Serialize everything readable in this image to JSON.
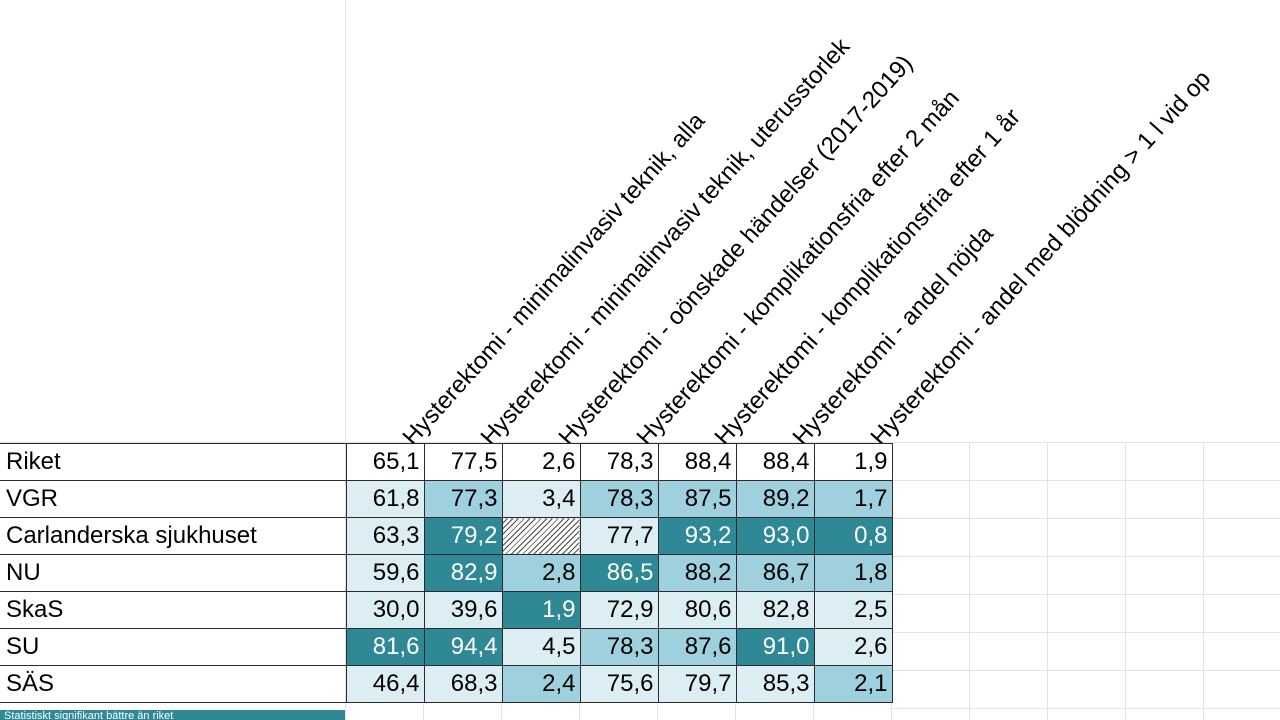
{
  "colors": {
    "level_0": "#ffffff",
    "level_1": "#dcedf3",
    "level_2": "#9fd0de",
    "level_3": "#2e8896",
    "hatch": "#4a4a4a",
    "footer_bg": "#2e8896"
  },
  "columns": [
    "Hysterektomi - minimalinvasiv teknik, alla",
    "Hysterektomi - minimalinvasiv teknik, uterusstorlek",
    "Hysterektomi - oönskade händelser (2017-2019)",
    "Hysterektomi - komplikationsfria efter 2 mån",
    "Hysterektomi - komplikationsfria efter 1 år",
    "Hysterektomi - andel nöjda",
    "Hysterektomi - andel med blödning > 1 l vid op"
  ],
  "rows": [
    {
      "label": "Riket",
      "cells": [
        {
          "value": "65,1",
          "level": 0
        },
        {
          "value": "77,5",
          "level": 0
        },
        {
          "value": "2,6",
          "level": 0
        },
        {
          "value": "78,3",
          "level": 0
        },
        {
          "value": "88,4",
          "level": 0
        },
        {
          "value": "88,4",
          "level": 0
        },
        {
          "value": "1,9",
          "level": 0
        }
      ]
    },
    {
      "label": "VGR",
      "cells": [
        {
          "value": "61,8",
          "level": 1
        },
        {
          "value": "77,3",
          "level": 2
        },
        {
          "value": "3,4",
          "level": 1
        },
        {
          "value": "78,3",
          "level": 2
        },
        {
          "value": "87,5",
          "level": 2
        },
        {
          "value": "89,2",
          "level": 2
        },
        {
          "value": "1,7",
          "level": 2
        }
      ]
    },
    {
      "label": "Carlanderska sjukhuset",
      "cells": [
        {
          "value": "63,3",
          "level": 1
        },
        {
          "value": "79,2",
          "level": 3
        },
        {
          "value": "",
          "level": "hatched"
        },
        {
          "value": "77,7",
          "level": 1
        },
        {
          "value": "93,2",
          "level": 3
        },
        {
          "value": "93,0",
          "level": 3
        },
        {
          "value": "0,8",
          "level": 3
        }
      ]
    },
    {
      "label": "NU",
      "cells": [
        {
          "value": "59,6",
          "level": 1
        },
        {
          "value": "82,9",
          "level": 3
        },
        {
          "value": "2,8",
          "level": 2
        },
        {
          "value": "86,5",
          "level": 3
        },
        {
          "value": "88,2",
          "level": 2
        },
        {
          "value": "86,7",
          "level": 2
        },
        {
          "value": "1,8",
          "level": 2
        }
      ]
    },
    {
      "label": "SkaS",
      "cells": [
        {
          "value": "30,0",
          "level": 1
        },
        {
          "value": "39,6",
          "level": 1
        },
        {
          "value": "1,9",
          "level": 3
        },
        {
          "value": "72,9",
          "level": 1
        },
        {
          "value": "80,6",
          "level": 1
        },
        {
          "value": "82,8",
          "level": 1
        },
        {
          "value": "2,5",
          "level": 1
        }
      ]
    },
    {
      "label": "SU",
      "cells": [
        {
          "value": "81,6",
          "level": 3
        },
        {
          "value": "94,4",
          "level": 3
        },
        {
          "value": "4,5",
          "level": 1
        },
        {
          "value": "78,3",
          "level": 2
        },
        {
          "value": "87,6",
          "level": 2
        },
        {
          "value": "91,0",
          "level": 3
        },
        {
          "value": "2,6",
          "level": 1
        }
      ]
    },
    {
      "label": "SÄS",
      "cells": [
        {
          "value": "46,4",
          "level": 1
        },
        {
          "value": "68,3",
          "level": 1
        },
        {
          "value": "2,4",
          "level": 2
        },
        {
          "value": "75,6",
          "level": 1
        },
        {
          "value": "79,7",
          "level": 1
        },
        {
          "value": "85,3",
          "level": 1
        },
        {
          "value": "2,1",
          "level": 2
        }
      ]
    }
  ],
  "footer_note": "Statistiskt signifikant bättre än riket"
}
